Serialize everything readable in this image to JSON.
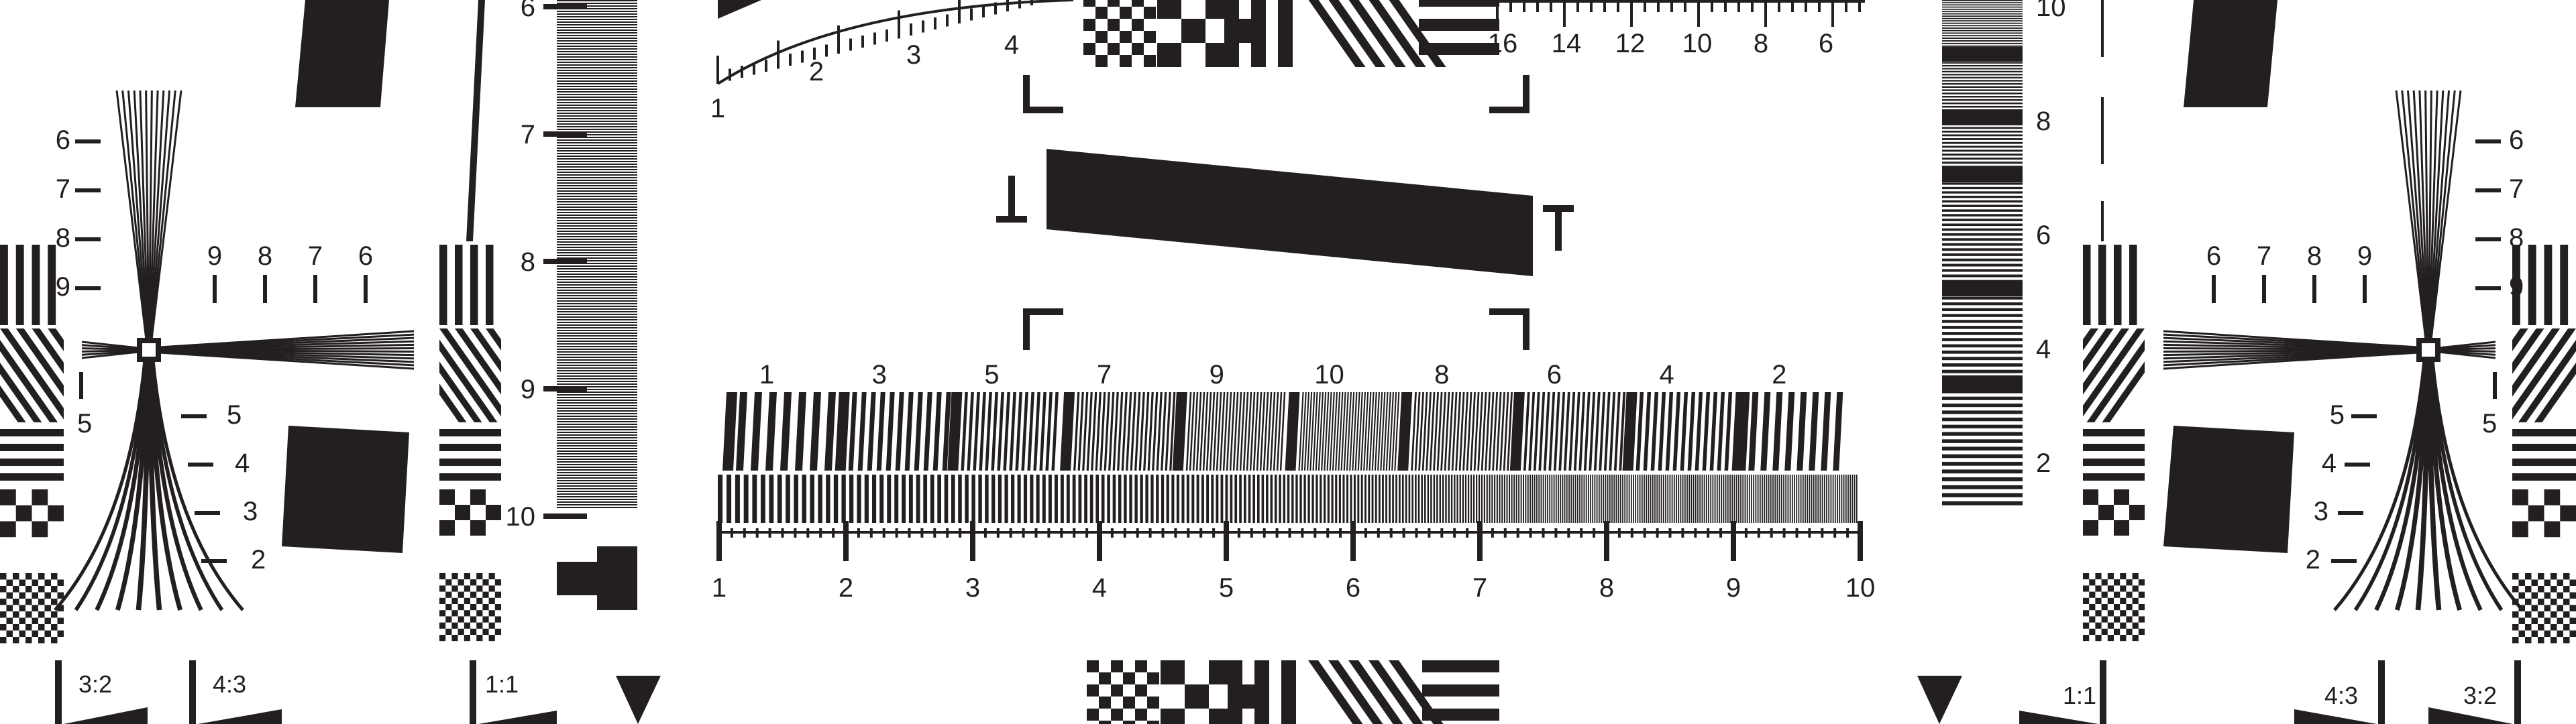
{
  "test_chart": {
    "ink_color": "#231f20",
    "background_color": "#ffffff",
    "top_ruler_left_labels": [
      "1",
      "2",
      "3",
      "4"
    ],
    "top_ruler_right_labels": [
      "16",
      "14",
      "12",
      "10",
      "8",
      "6"
    ],
    "left_ladder_labels": [
      "6",
      "7",
      "8",
      "9",
      "10"
    ],
    "right_ladder_labels": [
      "10",
      "8",
      "6",
      "4",
      "2"
    ],
    "left_star_upper_labels": [
      "6",
      "7",
      "8",
      "9"
    ],
    "left_star_side_labels": [
      "9",
      "8",
      "7",
      "6"
    ],
    "left_star_lower_labels": [
      "5",
      "4",
      "3",
      "2"
    ],
    "left_star_five": "5",
    "right_star_upper_labels": [
      "6",
      "7",
      "8",
      "9"
    ],
    "right_star_side_labels": [
      "6",
      "7",
      "8",
      "9"
    ],
    "right_star_lower_labels": [
      "5",
      "4",
      "3",
      "2"
    ],
    "right_star_five": "5",
    "resolution_band_labels": [
      "1",
      "3",
      "5",
      "7",
      "9",
      "10",
      "8",
      "6",
      "4",
      "2"
    ],
    "bottom_scale_labels": [
      "1",
      "2",
      "3",
      "4",
      "5",
      "6",
      "7",
      "8",
      "9",
      "10"
    ],
    "aspect_labels_left": [
      "3:2",
      "4:3",
      "1:1"
    ],
    "aspect_labels_right": [
      "1:1",
      "4:3",
      "3:2"
    ]
  }
}
